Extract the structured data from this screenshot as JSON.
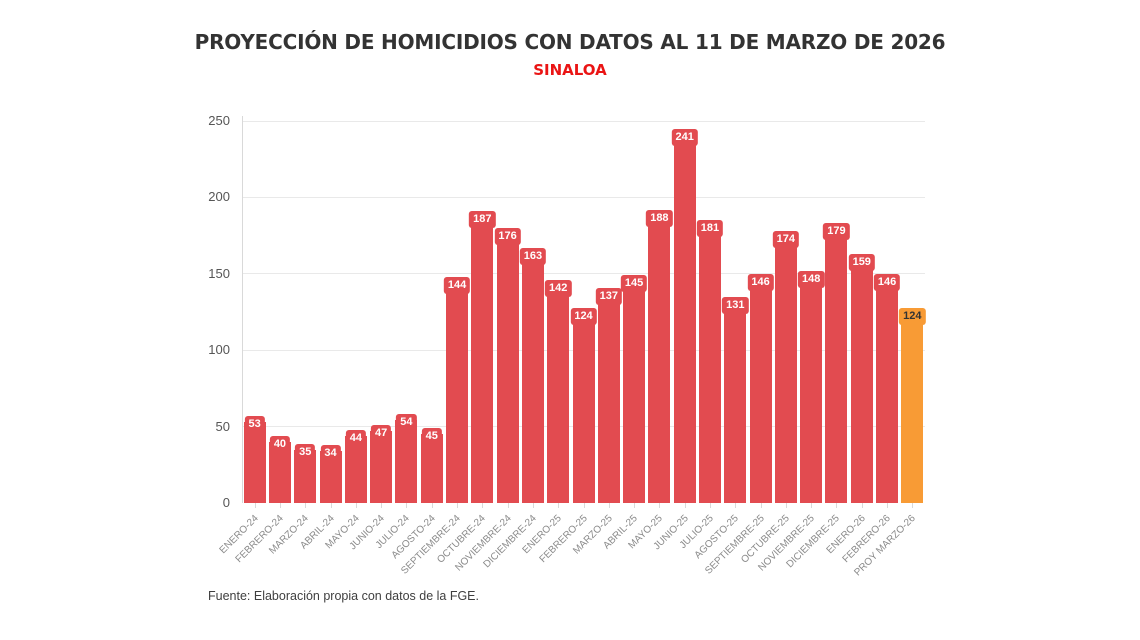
{
  "chart_data": {
    "type": "bar",
    "title": "PROYECCIÓN DE HOMICIDIOS CON DATOS AL 11 DE MARZO DE 2026",
    "subtitle": "SINALOA",
    "source": "Fuente: Elaboración propia con datos de la FGE.",
    "categories": [
      "ENERO-24",
      "FEBRERO-24",
      "MARZO-24",
      "ABRIL-24",
      "MAYO-24",
      "JUNIO-24",
      "JULIO-24",
      "AGOSTO-24",
      "SEPTIEMBRE-24",
      "OCTUBRE-24",
      "NOVIEMBRE-24",
      "DICIEMBRE-24",
      "ENERO-25",
      "FEBRERO-25",
      "MARZO-25",
      "ABRIL-25",
      "MAYO-25",
      "JUNIO-25",
      "JULIO-25",
      "AGOSTO-25",
      "SEPTIEMBRE-25",
      "OCTUBRE-25",
      "NOVIEMBRE-25",
      "DICIEMBRE-25",
      "ENERO-26",
      "FEBRERO-26",
      "PROY MARZO-26"
    ],
    "values": [
      53,
      40,
      35,
      34,
      44,
      47,
      54,
      45,
      144,
      187,
      176,
      163,
      142,
      124,
      137,
      145,
      188,
      241,
      181,
      131,
      146,
      174,
      148,
      179,
      159,
      146,
      124
    ],
    "highlight_index": 26,
    "colors": {
      "bar_default": "#e24b50",
      "bar_projection": "#f89b35",
      "value_label_text_default": "#ffffff",
      "value_label_text_projection": "#333333",
      "grid": "#e9e9e9",
      "axis": "#d9d9d9",
      "y_tick_text": "#565656",
      "x_tick_text": "#8a8a8a",
      "title_text": "#333333",
      "subtitle_text": "#ea1414"
    },
    "xlabel": "",
    "ylabel": "",
    "ylim": [
      0,
      250
    ],
    "yticks": [
      0,
      50,
      100,
      150,
      200,
      250
    ],
    "grid": true,
    "legend": false
  }
}
